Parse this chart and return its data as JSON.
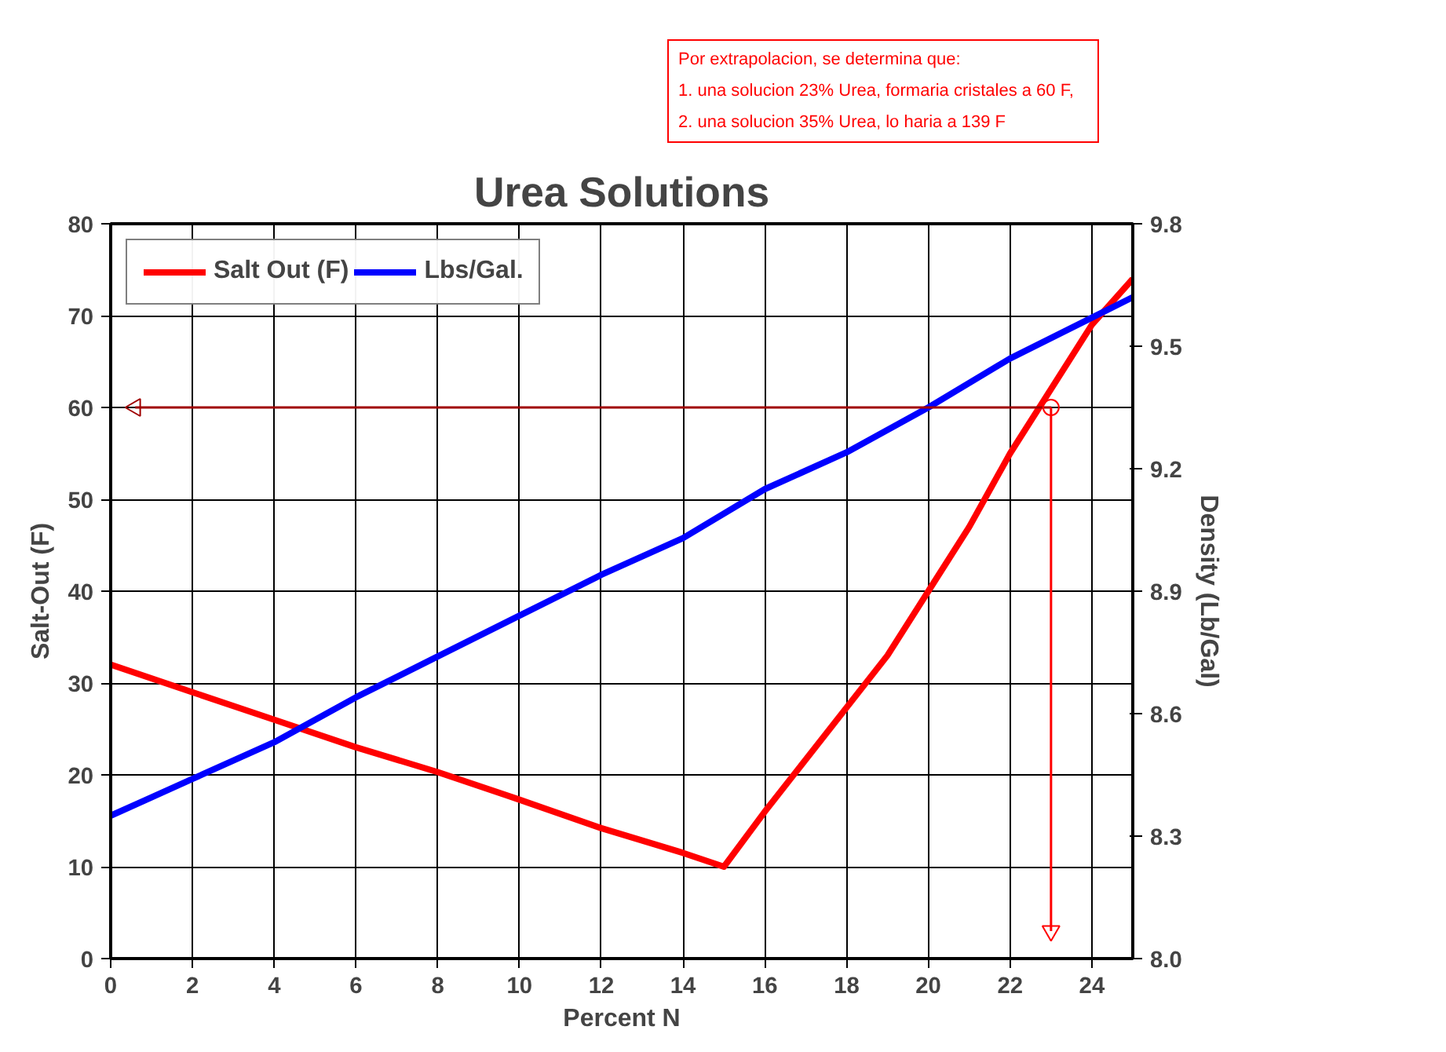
{
  "chart_data": {
    "type": "line",
    "title": "Urea Solutions",
    "xlabel": "Percent N",
    "ylabel": "Salt-Out (F)",
    "y2label": "Density (Lb/Gal)",
    "xlim": [
      0,
      25
    ],
    "xticks": [
      0,
      2,
      4,
      6,
      8,
      10,
      12,
      14,
      16,
      18,
      20,
      22,
      24
    ],
    "ylim": [
      0,
      80
    ],
    "yticks": [
      0,
      10,
      20,
      30,
      40,
      50,
      60,
      70,
      80
    ],
    "y2lim": [
      8.0,
      9.8
    ],
    "y2ticks": [
      {
        "value": 8.0,
        "label": "8.0"
      },
      8.3,
      8.6,
      8.9,
      9.2,
      9.5,
      9.8
    ],
    "series": [
      {
        "name": "Salt Out (F)",
        "color": "#ff0000",
        "x": [
          0,
          2,
          4,
          6,
          8,
          10,
          12,
          14,
          15,
          16,
          19,
          20,
          21,
          22,
          23,
          24,
          25
        ],
        "values": [
          32,
          29,
          26,
          23,
          20.3,
          17.3,
          14.2,
          11.5,
          10,
          16,
          33,
          40,
          47,
          55,
          62,
          69,
          74
        ]
      },
      {
        "name": "Lbs/Gal.",
        "color": "#0000ff",
        "axis": "y2",
        "x": [
          0,
          2,
          4,
          6,
          8,
          10,
          12,
          14,
          16,
          18,
          20,
          22,
          24,
          25
        ],
        "values": [
          8.35,
          8.44,
          8.53,
          8.64,
          8.74,
          8.84,
          8.94,
          9.03,
          9.15,
          9.24,
          9.35,
          9.47,
          9.57,
          9.62
        ]
      },
      {
        "type": "line",
        "marker": "triangle",
        "color": "#a00000",
        "x": [
          23,
          0.6
        ],
        "values": [
          60,
          60
        ]
      },
      {
        "type": "line",
        "marker": "triangle",
        "color": "#ff0000",
        "x": [
          23,
          23
        ],
        "values": [
          60,
          3
        ]
      },
      {
        "type": "scatter",
        "marker": "circle",
        "color": "#ff0000",
        "x": [
          23
        ],
        "values": [
          60
        ]
      }
    ],
    "annotations": [
      "Por extrapolacion, se determina que:\n1. una solucion 23% Urea, formaria cristales a 60 F,\n2. una solucion 35% Urea, lo haria a 139 F"
    ],
    "grid": true,
    "legend": "top left",
    "line_style": "solid",
    "marker": "none"
  }
}
